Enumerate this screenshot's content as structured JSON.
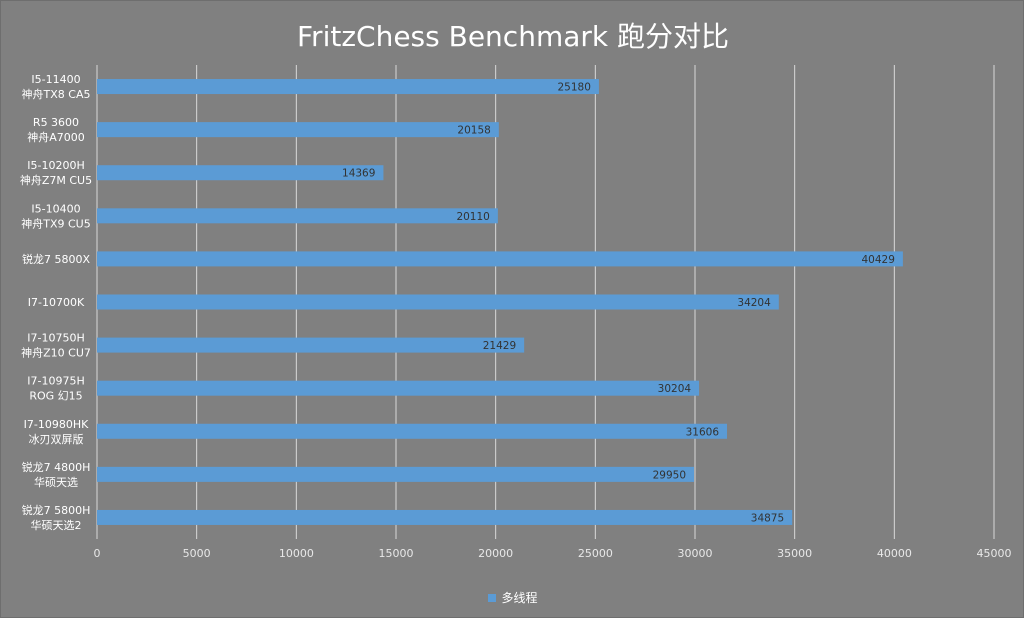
{
  "chart_data": {
    "type": "bar",
    "orientation": "horizontal",
    "title": "FritzChess Benchmark 跑分对比",
    "categories": [
      [
        "I5-11400",
        "神舟TX8 CA5"
      ],
      [
        "R5 3600",
        "神舟A7000"
      ],
      [
        "I5-10200H",
        "神舟Z7M CU5"
      ],
      [
        "I5-10400",
        "神舟TX9 CU5"
      ],
      [
        "锐龙7 5800X"
      ],
      [
        "I7-10700K"
      ],
      [
        "I7-10750H",
        "神舟Z10 CU7"
      ],
      [
        "I7-10975H",
        "ROG 幻15"
      ],
      [
        "I7-10980HK",
        "冰刃双屏版"
      ],
      [
        "锐龙7 4800H",
        "华硕天选"
      ],
      [
        "锐龙7 5800H",
        "华硕天选2"
      ]
    ],
    "series": [
      {
        "name": "多线程",
        "values": [
          25180,
          20158,
          14369,
          20110,
          40429,
          34204,
          21429,
          30204,
          31606,
          29950,
          34875
        ]
      }
    ],
    "xlim": [
      0,
      45000
    ],
    "xticks": [
      0,
      5000,
      10000,
      15000,
      20000,
      25000,
      30000,
      35000,
      40000,
      45000
    ],
    "grid": true,
    "legend": "bottom",
    "colors": {
      "bar": "#5b9bd5",
      "background": "#808080",
      "grid": "#d9d9d9"
    }
  }
}
